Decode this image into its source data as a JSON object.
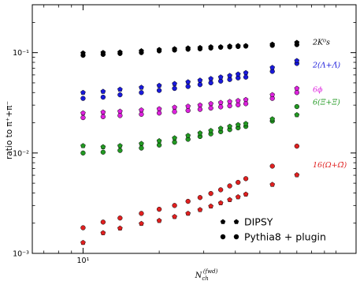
{
  "chart_data": {
    "type": "scatter",
    "xlabel": "N_ch^(fwd)",
    "ylabel": "ratio to π⁺+π⁻",
    "x_scale": "log",
    "y_scale": "log",
    "xlim": [
      6.3,
      120
    ],
    "ylim": [
      0.001,
      0.3
    ],
    "x_ticks": [
      {
        "value": 10,
        "label": "10¹"
      }
    ],
    "y_ticks": [
      {
        "value": 0.001,
        "label": "10⁻³"
      },
      {
        "value": 0.01,
        "label": "10⁻²"
      },
      {
        "value": 0.1,
        "label": "10⁻¹"
      }
    ],
    "grid": false,
    "x": [
      10,
      12,
      14,
      17,
      20,
      23,
      26,
      29,
      32,
      35,
      38,
      41,
      44,
      56,
      70
    ],
    "particles": [
      {
        "label": "2K⁰s",
        "label_y": 0.127,
        "color": "#000000",
        "dipsy": [
          0.099,
          0.1,
          0.101,
          0.104,
          0.107,
          0.109,
          0.111,
          0.112,
          0.114,
          0.114,
          0.116,
          0.117,
          0.117,
          0.121,
          0.126
        ],
        "pythia": [
          0.094,
          0.096,
          0.098,
          0.1,
          0.104,
          0.106,
          0.108,
          0.109,
          0.111,
          0.113,
          0.114,
          0.115,
          0.116,
          0.118,
          0.12
        ]
      },
      {
        "label": "2(Λ+Λ̄)",
        "label_y": 0.075,
        "color": "#1a1adb",
        "dipsy": [
          0.04,
          0.041,
          0.043,
          0.045,
          0.047,
          0.049,
          0.051,
          0.053,
          0.055,
          0.057,
          0.059,
          0.061,
          0.063,
          0.071,
          0.083
        ],
        "pythia": [
          0.035,
          0.036,
          0.038,
          0.04,
          0.042,
          0.044,
          0.046,
          0.048,
          0.05,
          0.052,
          0.054,
          0.056,
          0.057,
          0.065,
          0.078
        ]
      },
      {
        "label": "6ϕ",
        "label_y": 0.043,
        "color": "#dd22dd",
        "dipsy": [
          0.025,
          0.0255,
          0.026,
          0.0268,
          0.0275,
          0.0285,
          0.0292,
          0.03,
          0.031,
          0.0318,
          0.0325,
          0.0332,
          0.034,
          0.038,
          0.044
        ],
        "pythia": [
          0.0225,
          0.023,
          0.0236,
          0.0243,
          0.025,
          0.0258,
          0.0265,
          0.0272,
          0.028,
          0.0288,
          0.0295,
          0.0302,
          0.031,
          0.035,
          0.04
        ]
      },
      {
        "label": "6(Ξ+Ξ̄)",
        "label_y": 0.032,
        "color": "#229922",
        "dipsy": [
          0.0118,
          0.0115,
          0.0118,
          0.0124,
          0.0132,
          0.0141,
          0.0149,
          0.0158,
          0.0167,
          0.0176,
          0.0184,
          0.0191,
          0.0196,
          0.0218,
          0.024
        ],
        "pythia": [
          0.01,
          0.0102,
          0.0106,
          0.0112,
          0.012,
          0.0128,
          0.0137,
          0.0146,
          0.0155,
          0.0163,
          0.0171,
          0.0178,
          0.0184,
          0.0208,
          0.029
        ]
      },
      {
        "label": "16(Ω+Ω̄)",
        "label_y": 0.0076,
        "color": "#e02020",
        "dipsy": [
          0.00128,
          0.0016,
          0.00178,
          0.00198,
          0.00212,
          0.00232,
          0.0025,
          0.00272,
          0.00295,
          0.00318,
          0.00342,
          0.00365,
          0.00388,
          0.00485,
          0.00605
        ],
        "pythia": [
          0.0018,
          0.00205,
          0.00225,
          0.0025,
          0.00275,
          0.003,
          0.0033,
          0.0036,
          0.00395,
          0.0043,
          0.0047,
          0.0051,
          0.00555,
          0.0074,
          0.0117
        ]
      }
    ],
    "legend": {
      "placement": "bottom-right",
      "entries": [
        {
          "marker": "pentagon",
          "label": "DIPSY"
        },
        {
          "marker": "circle",
          "label": "Pythia8 + plugin"
        }
      ]
    }
  }
}
